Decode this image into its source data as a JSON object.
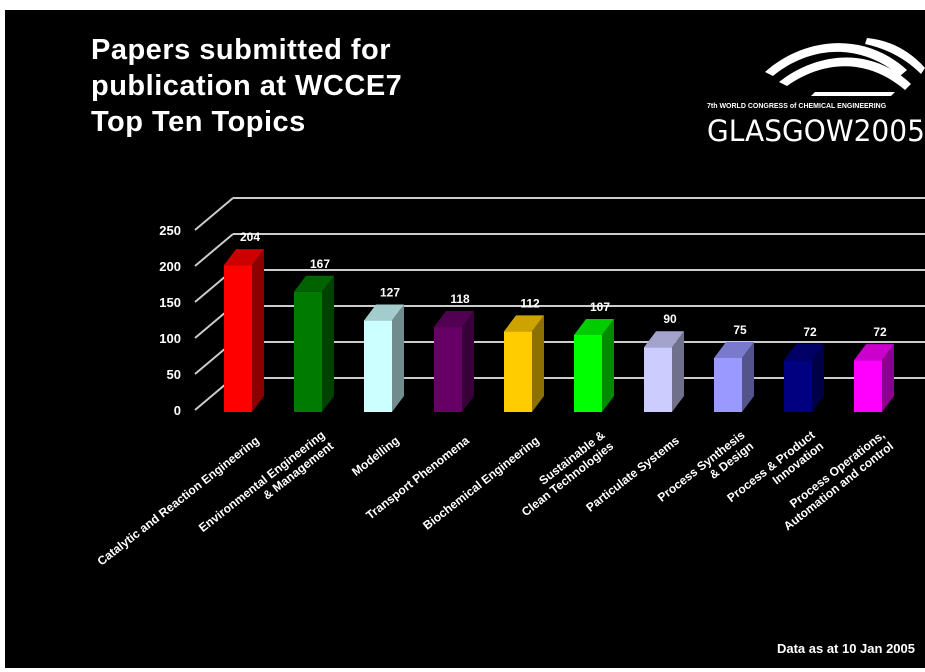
{
  "slide": {
    "title_lines": [
      "Papers submitted for",
      "publication at WCCE7",
      "Top Ten Topics"
    ],
    "footer": "Data as at 10 Jan 2005"
  },
  "logo": {
    "subtitle": "7th WORLD CONGRESS of CHEMICAL ENGINEERING",
    "wordmark": "GLASGOW2005"
  },
  "colors": {
    "background": "#000000",
    "text": "#ffffff",
    "grid": "#cccccc"
  },
  "chart_data": {
    "type": "bar",
    "title": "",
    "xlabel": "",
    "ylabel": "",
    "ylim": [
      0,
      250
    ],
    "yticks": [
      0,
      50,
      100,
      150,
      200,
      250
    ],
    "grid": true,
    "three_d": true,
    "categories": [
      [
        "Catalytic and Reaction Engineering"
      ],
      [
        "Environmental Engineering",
        "& Management"
      ],
      [
        "Modelling"
      ],
      [
        "Transport Phenomena"
      ],
      [
        "Biochemical Engineering"
      ],
      [
        "Sustainable &",
        "Clean Technologies"
      ],
      [
        "Particulate Systems"
      ],
      [
        "Process Synthesis",
        "& Design"
      ],
      [
        "Process & Product",
        "Innovation"
      ],
      [
        "Process Operations,",
        "Automation and control"
      ]
    ],
    "values": [
      204,
      167,
      127,
      118,
      112,
      107,
      90,
      75,
      72,
      72
    ],
    "bar_colors": [
      "#ff0000",
      "#007a00",
      "#ccffff",
      "#660066",
      "#ffcc00",
      "#00ff00",
      "#ccccff",
      "#9999ff",
      "#000080",
      "#ff00ff"
    ]
  }
}
